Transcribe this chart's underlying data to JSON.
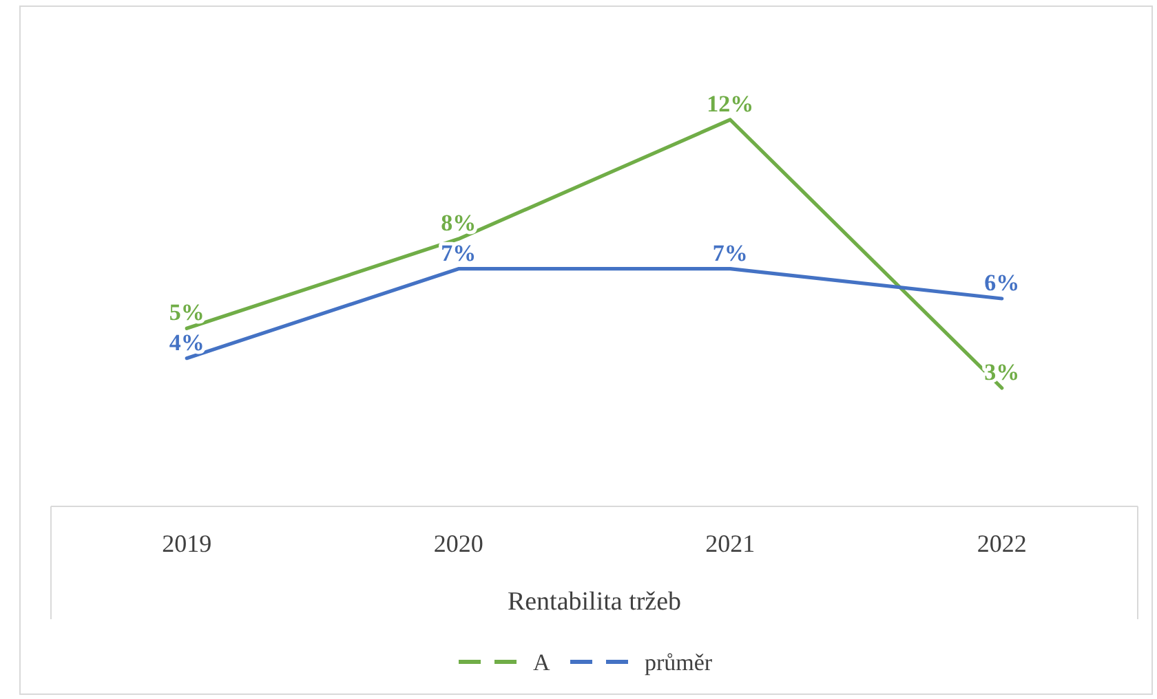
{
  "chart_data": {
    "type": "line",
    "xlabel": "Rentabilita tržeb",
    "categories": [
      "2019",
      "2020",
      "2021",
      "2022"
    ],
    "series": [
      {
        "name": "A",
        "color": "#70ad47",
        "values": [
          5,
          8,
          12,
          3
        ],
        "value_labels": [
          "5%",
          "8%",
          "12%",
          "3%"
        ]
      },
      {
        "name": "průměr",
        "color": "#4472c4",
        "values": [
          4,
          7,
          7,
          6
        ],
        "value_labels": [
          "4%",
          "7%",
          "7%",
          "6%"
        ]
      }
    ],
    "legend": "bottom",
    "grid": false
  }
}
